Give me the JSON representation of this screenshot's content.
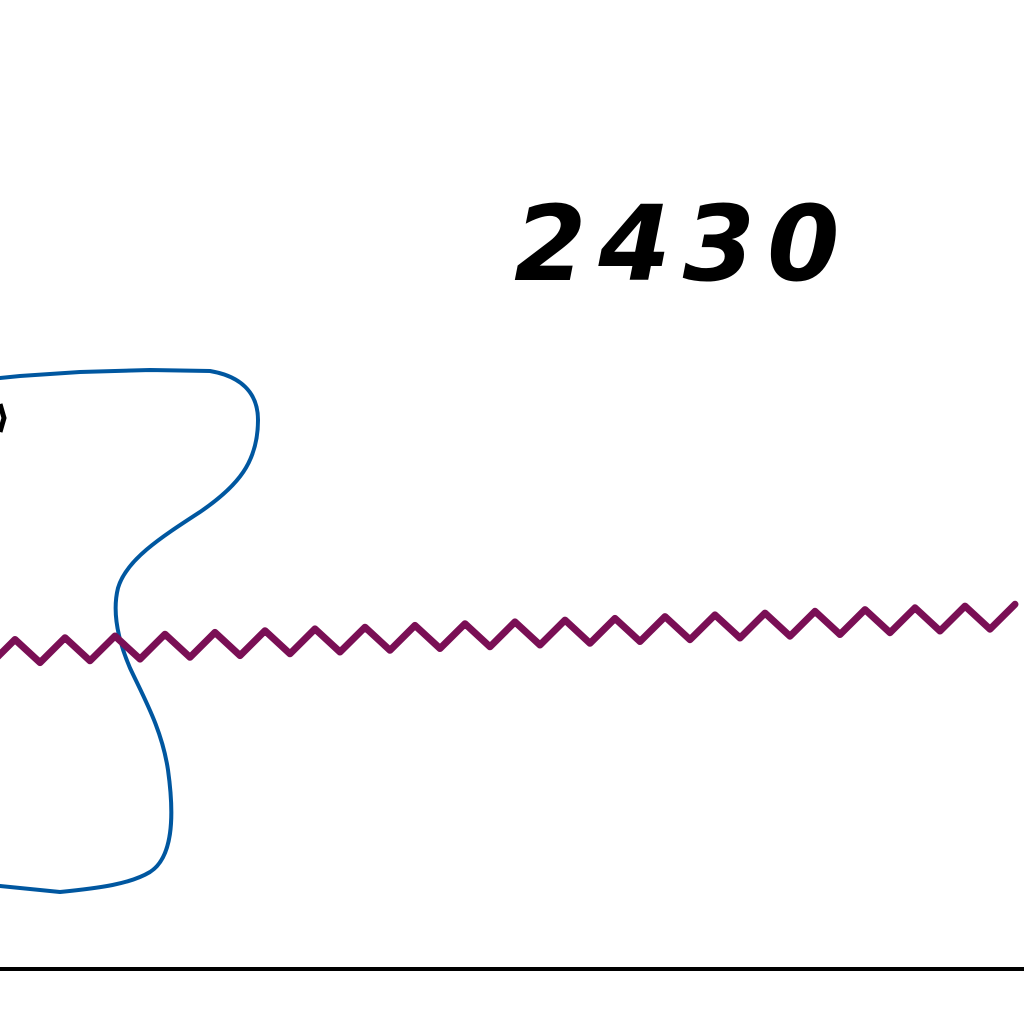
{
  "diagram": {
    "label": "2430",
    "colors": {
      "background": "#ffffff",
      "text": "#000000",
      "loop": "#0057a0",
      "wave": "#7a0f55",
      "baseline": "#000000"
    },
    "icons": {
      "loop": "closed-curve-outline",
      "wave": "sine-wave-line",
      "baseline": "horizontal-rule"
    }
  }
}
